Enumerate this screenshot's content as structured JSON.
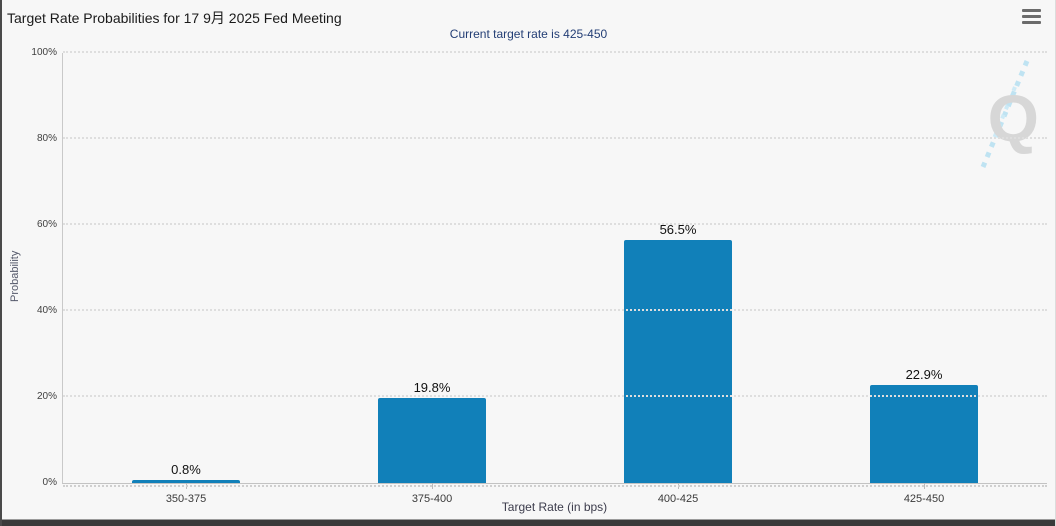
{
  "header": {
    "title": "Target Rate Probabilities for 17 9月 2025 Fed Meeting"
  },
  "chart_data": {
    "type": "bar",
    "title": "Target Rate Probabilities for 17 9月 2025 Fed Meeting",
    "subtitle": "Current target rate is 425-450",
    "categories": [
      "350-375",
      "375-400",
      "400-425",
      "425-450"
    ],
    "values": [
      0.8,
      19.8,
      56.5,
      22.9
    ],
    "value_labels": [
      "0.8%",
      "19.8%",
      "56.5%",
      "22.9%"
    ],
    "xlabel": "Target Rate (in bps)",
    "ylabel": "Probability",
    "ylim": [
      0,
      100
    ],
    "yticks": [
      0,
      20,
      40,
      60,
      80,
      100
    ],
    "ytick_labels": [
      "0%",
      "20%",
      "40%",
      "60%",
      "80%",
      "100%"
    ],
    "grid": "horizontal dotted",
    "legend_position": "none",
    "bar_color": "#1180B9",
    "subtitle_color": "#233e75",
    "watermark_letter": "Q"
  }
}
